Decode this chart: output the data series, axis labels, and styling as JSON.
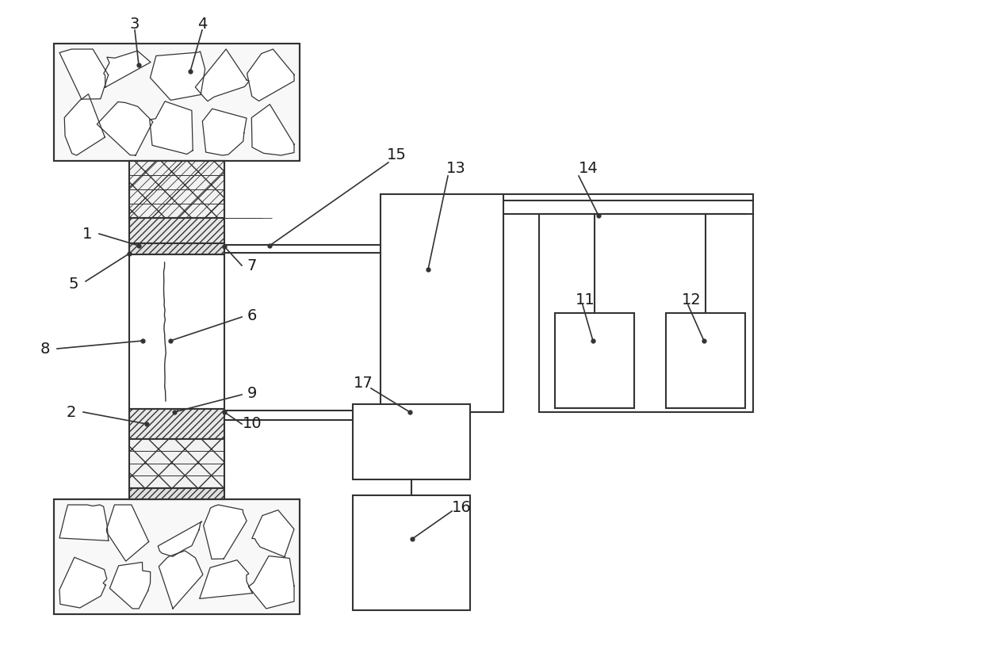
{
  "background": "#ffffff",
  "line_color": "#333333",
  "line_width": 1.5,
  "fig_width": 12.4,
  "fig_height": 8.24,
  "dpi": 100
}
